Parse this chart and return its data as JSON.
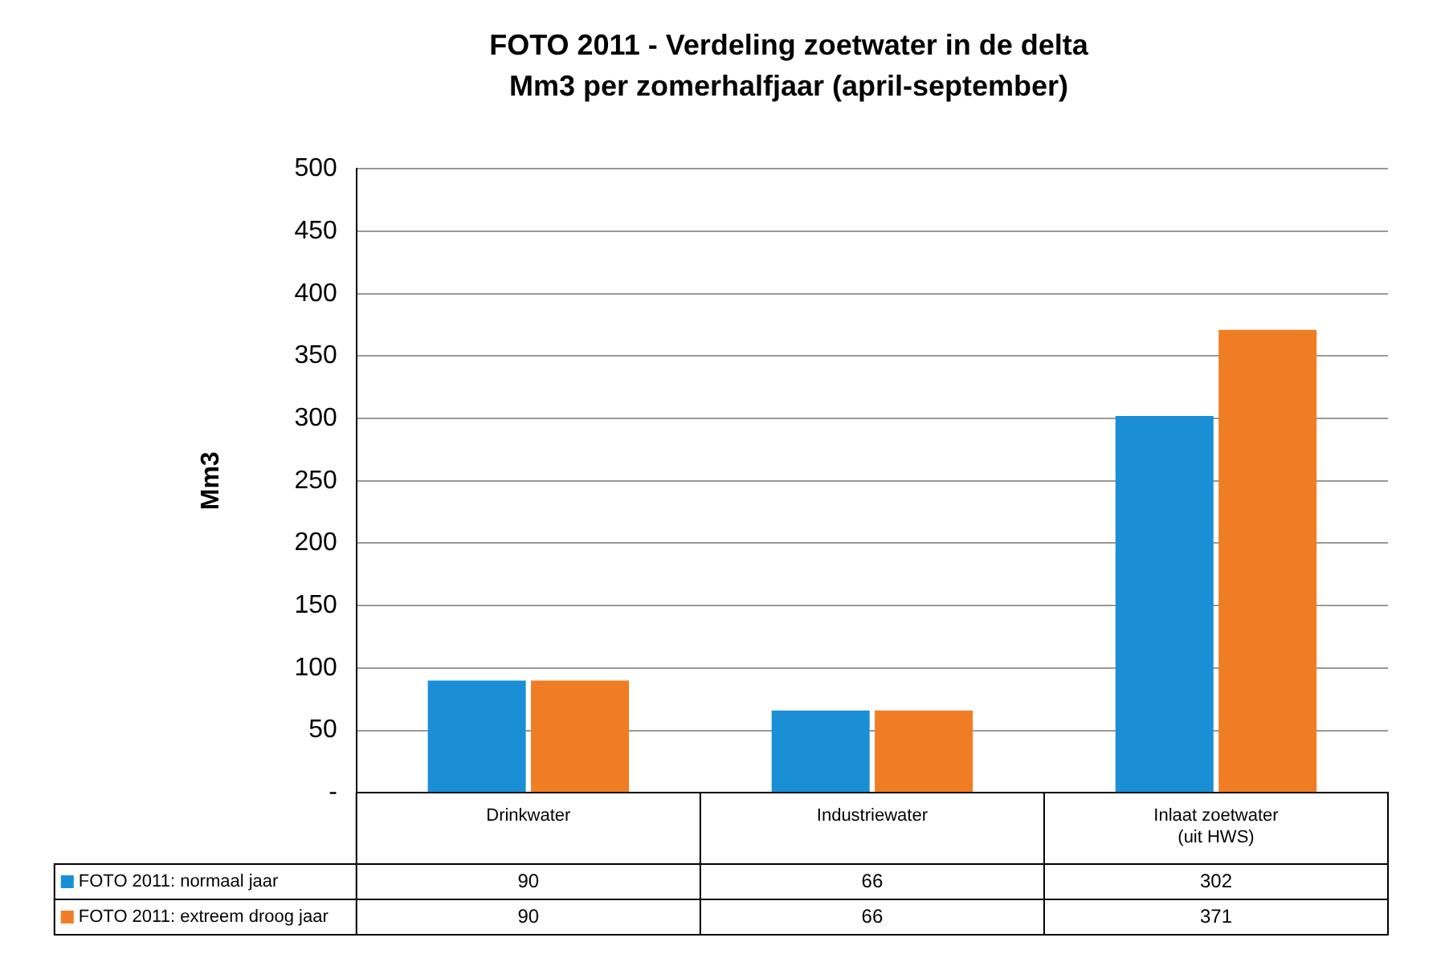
{
  "chart_data": {
    "type": "bar",
    "title": "FOTO 2011 - Verdeling zoetwater in de delta",
    "subtitle": "Mm3 per zomerhalfjaar (april-september)",
    "ylabel": "Mm3",
    "categories": [
      "Drinkwater",
      "Industriewater",
      "Inlaat zoetwater (uit HWS)"
    ],
    "series": [
      {
        "name": "FOTO 2011: normaal jaar",
        "color": "#1a8fd6",
        "values": [
          90,
          66,
          302
        ]
      },
      {
        "name": "FOTO 2011: extreem droog jaar",
        "color": "#f07d24",
        "values": [
          90,
          66,
          371
        ]
      }
    ],
    "ylim": [
      0,
      500
    ],
    "yticks": [
      {
        "value": 0,
        "label": "-"
      },
      50,
      100,
      150,
      200,
      250,
      300,
      350,
      400,
      450,
      500
    ],
    "grid": "y",
    "legend": "bottom",
    "data_labels": true
  }
}
